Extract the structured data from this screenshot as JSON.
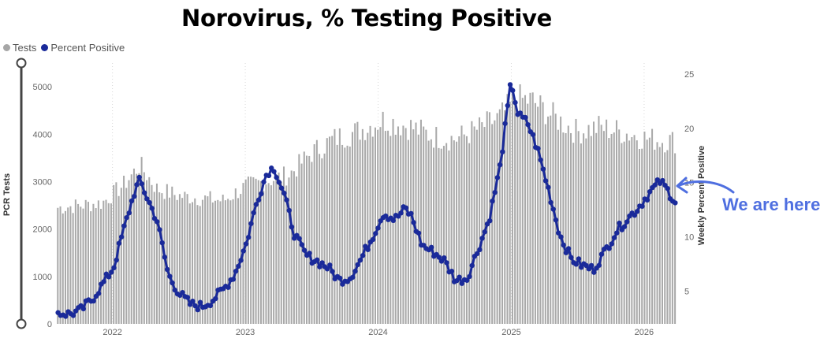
{
  "chart_data": {
    "type": "bar+line",
    "title": "Norovirus, % Testing Positive",
    "legend": [
      {
        "name": "Tests",
        "color": "#a6a6a6"
      },
      {
        "name": "Percent Positive",
        "color": "#1a2a9a"
      }
    ],
    "legend_placement": "top-left",
    "left_axis": {
      "label": "PCR Tests",
      "ticks": [
        0,
        1000,
        2000,
        3000,
        4000,
        5000
      ],
      "range": [
        0,
        5500
      ]
    },
    "right_axis": {
      "label": "Weekly Percent Positive",
      "ticks": [
        5,
        10,
        15,
        20,
        25
      ],
      "range": [
        2,
        26
      ]
    },
    "x_axis": {
      "ticks": [
        "2022",
        "2023",
        "2024",
        "2025",
        "2026"
      ],
      "start": "2021-08-01",
      "end": "2026-03-31"
    },
    "grid": "vertical dotted",
    "annotation": "We are here",
    "bar_anchors": [
      [
        "2021-08-01",
        2450
      ],
      [
        "2021-10-01",
        2500
      ],
      [
        "2021-12-01",
        2550
      ],
      [
        "2022-02-01",
        2950
      ],
      [
        "2022-03-15",
        3350
      ],
      [
        "2022-05-01",
        2850
      ],
      [
        "2022-07-01",
        2700
      ],
      [
        "2022-09-01",
        2650
      ],
      [
        "2022-11-01",
        2600
      ],
      [
        "2023-01-01",
        2900
      ],
      [
        "2023-03-15",
        3050
      ],
      [
        "2023-05-01",
        3150
      ],
      [
        "2023-07-01",
        3600
      ],
      [
        "2023-09-01",
        3900
      ],
      [
        "2023-11-01",
        4050
      ],
      [
        "2024-01-15",
        4300
      ],
      [
        "2024-04-01",
        4150
      ],
      [
        "2024-06-01",
        3950
      ],
      [
        "2024-08-01",
        3900
      ],
      [
        "2024-10-01",
        4100
      ],
      [
        "2024-12-01",
        4350
      ],
      [
        "2025-01-15",
        4750
      ],
      [
        "2025-03-01",
        4700
      ],
      [
        "2025-05-01",
        4350
      ],
      [
        "2025-07-01",
        4050
      ],
      [
        "2025-09-01",
        4150
      ],
      [
        "2025-11-01",
        4050
      ],
      [
        "2026-01-15",
        3900
      ],
      [
        "2026-03-31",
        3850
      ]
    ],
    "percent_positive": [
      [
        "2021-08-01",
        3.0
      ],
      [
        "2021-09-01",
        2.9
      ],
      [
        "2021-10-01",
        3.2
      ],
      [
        "2021-11-01",
        4.2
      ],
      [
        "2021-12-01",
        5.6
      ],
      [
        "2022-01-01",
        7.2
      ],
      [
        "2022-02-01",
        11.0
      ],
      [
        "2022-03-01",
        14.3
      ],
      [
        "2022-03-15",
        15.2
      ],
      [
        "2022-04-01",
        13.8
      ],
      [
        "2022-05-01",
        11.5
      ],
      [
        "2022-06-01",
        6.5
      ],
      [
        "2022-07-01",
        4.8
      ],
      [
        "2022-08-01",
        3.8
      ],
      [
        "2022-09-01",
        3.6
      ],
      [
        "2022-10-01",
        4.2
      ],
      [
        "2022-11-01",
        5.2
      ],
      [
        "2022-12-01",
        6.6
      ],
      [
        "2023-01-01",
        9.3
      ],
      [
        "2023-02-01",
        13.4
      ],
      [
        "2023-03-01",
        16.0
      ],
      [
        "2023-03-20",
        16.4
      ],
      [
        "2023-04-15",
        14.0
      ],
      [
        "2023-05-15",
        10.2
      ],
      [
        "2023-06-15",
        8.3
      ],
      [
        "2023-07-15",
        7.8
      ],
      [
        "2023-08-15",
        7.2
      ],
      [
        "2023-09-15",
        6.0
      ],
      [
        "2023-10-15",
        6.3
      ],
      [
        "2023-11-15",
        8.0
      ],
      [
        "2023-12-15",
        10.0
      ],
      [
        "2024-01-15",
        12.2
      ],
      [
        "2024-02-15",
        11.6
      ],
      [
        "2024-03-15",
        12.6
      ],
      [
        "2024-04-01",
        11.9
      ],
      [
        "2024-05-01",
        9.2
      ],
      [
        "2024-06-01",
        8.6
      ],
      [
        "2024-07-01",
        7.8
      ],
      [
        "2024-08-01",
        6.0
      ],
      [
        "2024-09-01",
        6.2
      ],
      [
        "2024-10-01",
        8.8
      ],
      [
        "2024-11-01",
        11.6
      ],
      [
        "2024-12-01",
        16.4
      ],
      [
        "2025-01-01",
        24.4
      ],
      [
        "2025-01-20",
        21.2
      ],
      [
        "2025-02-15",
        20.5
      ],
      [
        "2025-03-15",
        18.0
      ],
      [
        "2025-04-15",
        14.2
      ],
      [
        "2025-05-15",
        10.2
      ],
      [
        "2025-06-15",
        8.0
      ],
      [
        "2025-07-15",
        7.4
      ],
      [
        "2025-08-15",
        7.0
      ],
      [
        "2025-09-15",
        8.6
      ],
      [
        "2025-10-15",
        10.4
      ],
      [
        "2025-11-15",
        11.6
      ],
      [
        "2025-12-15",
        12.6
      ],
      [
        "2026-01-15",
        14.0
      ],
      [
        "2026-02-15",
        15.1
      ],
      [
        "2026-03-01",
        14.6
      ],
      [
        "2026-03-31",
        13.2
      ]
    ]
  }
}
